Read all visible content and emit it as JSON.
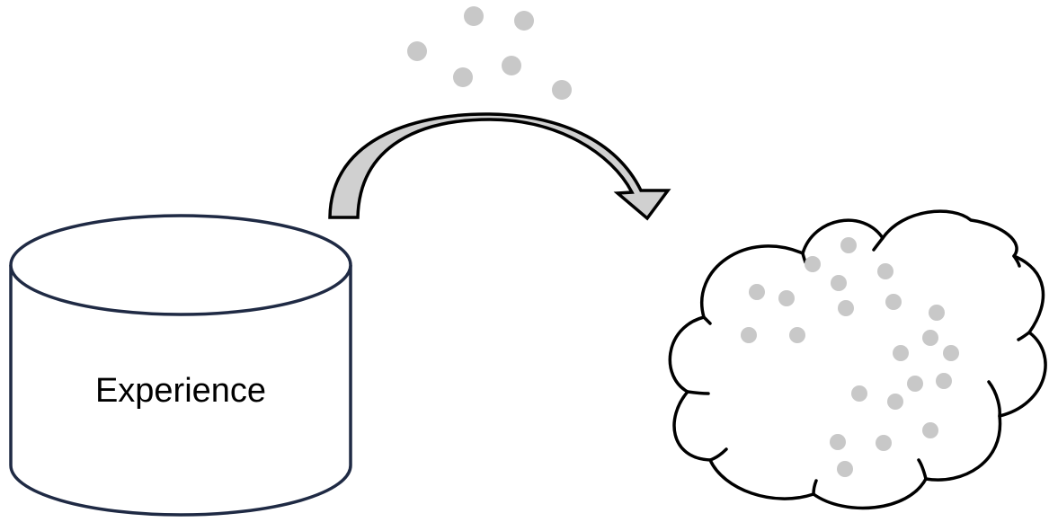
{
  "diagram": {
    "cylinder_label": "Experience"
  },
  "colors": {
    "outline_cylinder": "#1f2a44",
    "outline_cloud": "#000000",
    "arrow_fill": "#d0d0d0",
    "dot_fill": "#c8c8c8",
    "background": "#ffffff"
  },
  "elements": {
    "cylinder": "database-cylinder",
    "arrow": "curved-arrow",
    "cloud": "cloud-shape",
    "particles": "gray-dots"
  }
}
